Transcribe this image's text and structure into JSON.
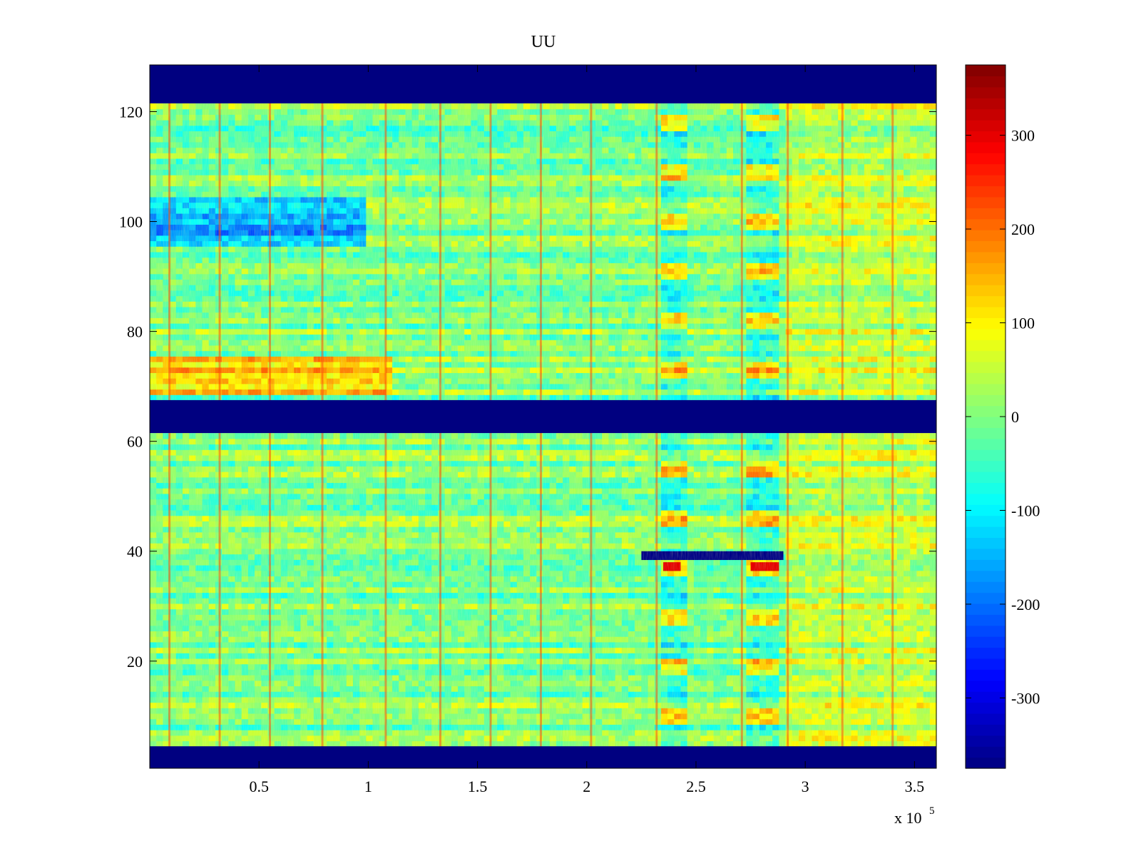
{
  "chart_data": {
    "type": "heatmap",
    "title": "UU",
    "xlabel": "",
    "ylabel": "",
    "x_multiplier_label": "x 10",
    "x_multiplier_exponent": "5",
    "xlim": [
      0,
      3.6
    ],
    "ylim": [
      1,
      128
    ],
    "x_ticks": [
      0.5,
      1,
      1.5,
      2,
      2.5,
      3,
      3.5
    ],
    "x_tick_labels": [
      "0.5",
      "1",
      "1.5",
      "2",
      "2.5",
      "3",
      "3.5"
    ],
    "y_ticks": [
      20,
      40,
      60,
      80,
      100,
      120
    ],
    "y_tick_labels": [
      "20",
      "40",
      "60",
      "80",
      "100",
      "120"
    ],
    "colorbar": {
      "colormap": "jet",
      "clim": [
        -375,
        375
      ],
      "ticks": [
        -300,
        -200,
        -100,
        0,
        100,
        200,
        300
      ],
      "tick_labels": [
        "-300",
        "-200",
        "-100",
        "0",
        "100",
        "200",
        "300"
      ]
    },
    "masked_row_bands": [
      {
        "rows": [
          1,
          4
        ],
        "value": -375
      },
      {
        "rows": [
          62,
          67
        ],
        "value": -375
      },
      {
        "rows": [
          122,
          128
        ],
        "value": -375
      }
    ],
    "vertical_spike_columns": [
      0.09,
      0.32,
      0.55,
      0.79,
      1.08,
      1.33,
      1.56,
      1.79,
      2.02,
      2.32,
      2.71,
      2.92,
      3.17,
      3.4
    ],
    "bright_segments": [
      {
        "x": [
          2.25,
          2.9
        ],
        "y": 39,
        "value": -370
      },
      {
        "x": [
          2.35,
          2.43
        ],
        "y": 37,
        "value": 300
      },
      {
        "x": [
          2.75,
          2.88
        ],
        "y": 37,
        "value": 300
      }
    ],
    "dominant_range_note": "Background values mostly between -150 and 150"
  }
}
